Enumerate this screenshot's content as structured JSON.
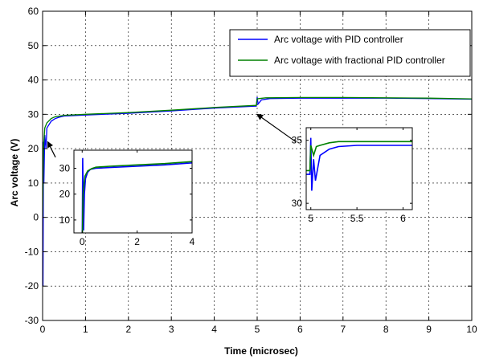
{
  "chart_data": [
    {
      "type": "line",
      "xlabel": "Time (microsec)",
      "ylabel": "Arc voltage (V)",
      "xlim": [
        0,
        10
      ],
      "ylim": [
        -30,
        60
      ],
      "xticks": [
        0,
        1,
        2,
        3,
        4,
        5,
        6,
        7,
        8,
        9,
        10
      ],
      "yticks": [
        -30,
        -20,
        -10,
        0,
        10,
        20,
        30,
        40,
        50,
        60
      ],
      "grid": true,
      "legend": "top-right",
      "series": [
        {
          "name": "Arc voltage with PID controller",
          "color": "#0000ff",
          "x": [
            0,
            0.01,
            0.02,
            0.03,
            0.05,
            0.08,
            0.1,
            0.15,
            0.2,
            0.3,
            0.4,
            0.5,
            1,
            2,
            3,
            4,
            4.98,
            5.0,
            5.02,
            5.1,
            5.3,
            6,
            7,
            8,
            9,
            10
          ],
          "y": [
            0,
            -20,
            22,
            10,
            24,
            20,
            26,
            27,
            28,
            28.8,
            29.2,
            29.5,
            29.8,
            30.3,
            31,
            31.8,
            32.4,
            35,
            33,
            34.2,
            34.6,
            34.7,
            34.7,
            34.7,
            34.6,
            34.4
          ]
        },
        {
          "name": "Arc voltage with fractional PID controller",
          "color": "#008000",
          "x": [
            0,
            0.02,
            0.05,
            0.1,
            0.2,
            0.3,
            0.5,
            1,
            2,
            3,
            4,
            4.98,
            5.0,
            5.05,
            5.2,
            6,
            7,
            8,
            9,
            10
          ],
          "y": [
            0,
            20,
            26,
            27.5,
            28.8,
            29.3,
            29.7,
            30,
            30.5,
            31.2,
            32,
            32.6,
            34.5,
            34.6,
            34.8,
            34.9,
            34.9,
            34.8,
            34.7,
            34.5
          ]
        }
      ],
      "annotations": [
        {
          "text": "",
          "from": [
            0.3,
            17.5
          ],
          "to": [
            0.12,
            22
          ]
        },
        {
          "text": "",
          "from": [
            5.9,
            22
          ],
          "to": [
            5.0,
            30
          ]
        }
      ]
    },
    {
      "type": "line",
      "inset_of": "main",
      "xlim": [
        -0.3,
        4
      ],
      "ylim": [
        5,
        37
      ],
      "xticks": [
        0,
        2,
        4
      ],
      "yticks": [
        10,
        20,
        30
      ],
      "grid": false,
      "series": [
        {
          "name": "Arc voltage with PID controller",
          "color": "#0000ff",
          "x": [
            -0.3,
            0,
            0.02,
            0.05,
            0.08,
            0.12,
            0.2,
            0.3,
            0.5,
            1,
            2,
            3,
            4
          ],
          "y": [
            0,
            0,
            34,
            6,
            20,
            26,
            28.5,
            29.6,
            30,
            30.3,
            30.8,
            31.3,
            32.1
          ]
        },
        {
          "name": "Arc voltage with fractional PID controller",
          "color": "#008000",
          "x": [
            -0.3,
            0,
            0.03,
            0.1,
            0.2,
            0.35,
            0.5,
            1,
            2,
            3,
            4
          ],
          "y": [
            0,
            0,
            20,
            27,
            29,
            29.9,
            30.4,
            30.8,
            31.3,
            31.8,
            32.6
          ]
        }
      ]
    },
    {
      "type": "line",
      "inset_of": "main",
      "xlim": [
        4.95,
        6.1
      ],
      "ylim": [
        29.5,
        36
      ],
      "xticks": [
        5,
        5.5,
        6
      ],
      "xtick_labels": [
        "5",
        "5.5",
        "6"
      ],
      "yticks": [
        30,
        35
      ],
      "grid": false,
      "series": [
        {
          "name": "Arc voltage with PID controller",
          "color": "#0000ff",
          "x": [
            4.95,
            4.99,
            5.0,
            5.01,
            5.03,
            5.05,
            5.1,
            5.2,
            5.3,
            5.5,
            5.8,
            6.1
          ],
          "y": [
            32.3,
            32.3,
            35.2,
            31,
            33.5,
            31.8,
            33.8,
            34.3,
            34.5,
            34.6,
            34.6,
            34.6
          ]
        },
        {
          "name": "Arc voltage with fractional PID controller",
          "color": "#008000",
          "x": [
            4.95,
            4.99,
            5.0,
            5.03,
            5.06,
            5.1,
            5.2,
            5.3,
            5.5,
            5.8,
            6.1
          ],
          "y": [
            32.6,
            32.6,
            34.6,
            33.8,
            34.5,
            34.6,
            34.8,
            34.9,
            34.9,
            34.9,
            34.9
          ]
        }
      ]
    }
  ]
}
